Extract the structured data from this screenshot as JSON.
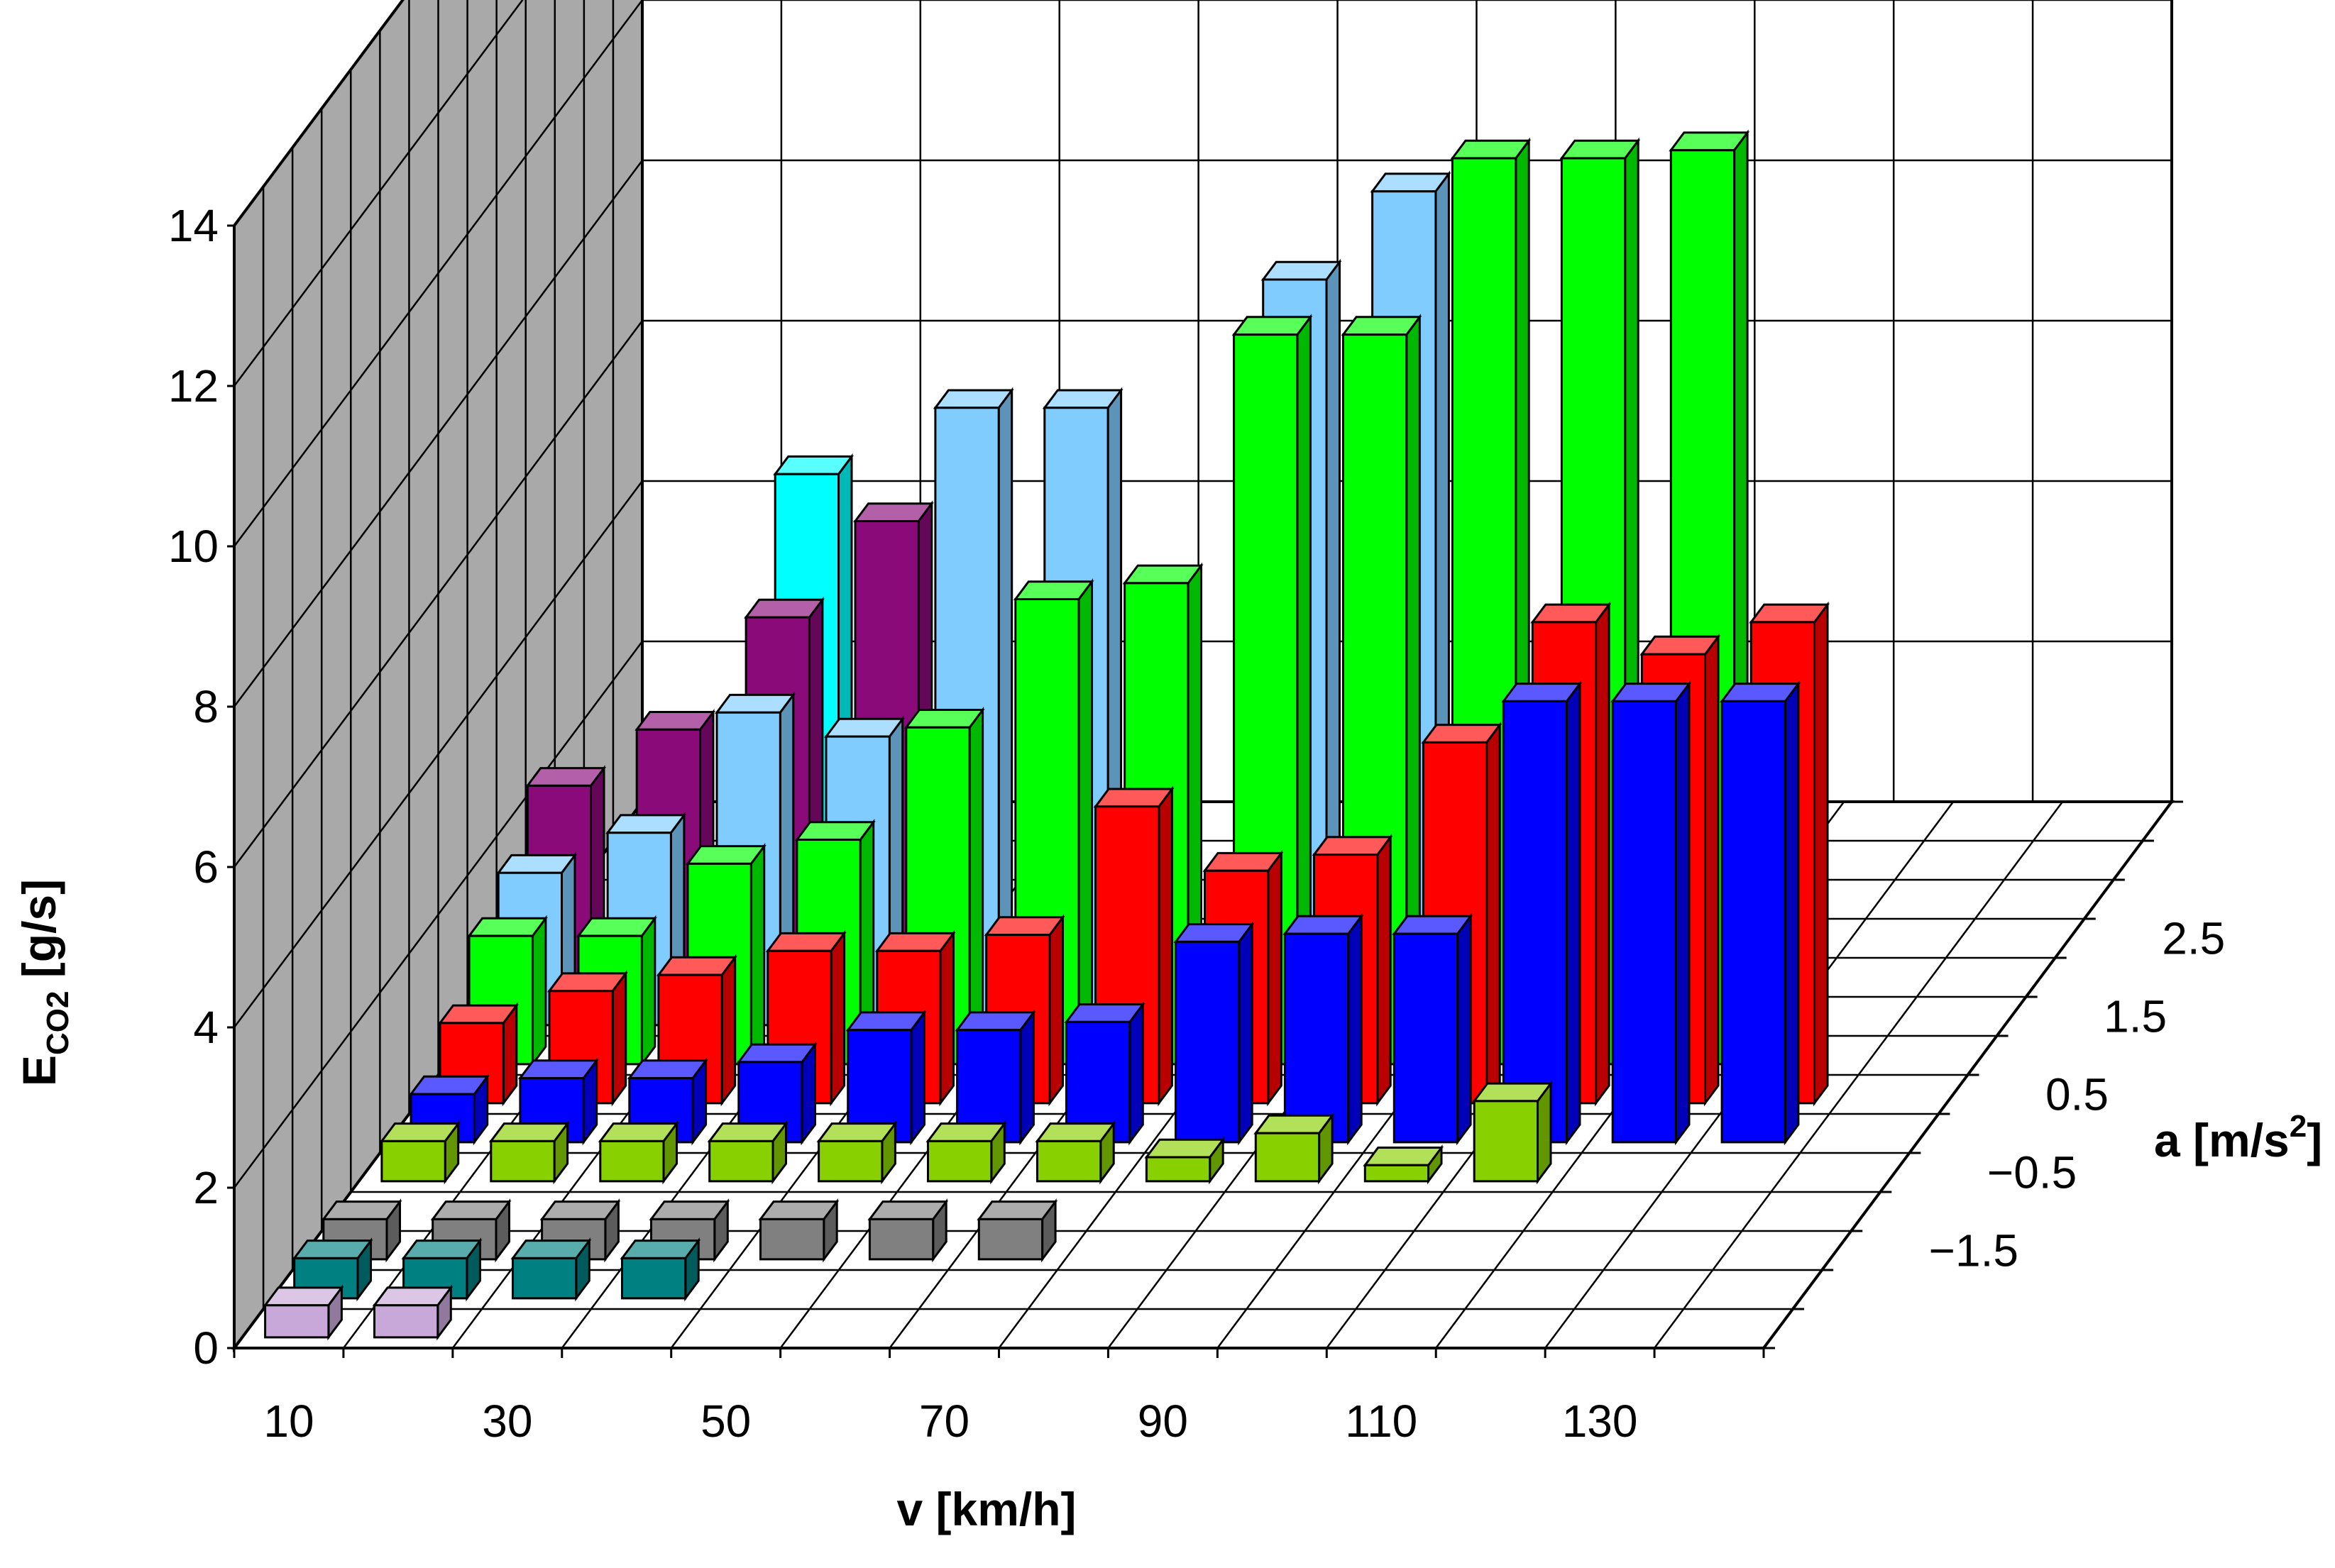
{
  "chart_data": {
    "type": "bar3d",
    "title": "",
    "xlabel": "v [km/h]",
    "ylabel_main": "E",
    "ylabel_sub": "CO2",
    "ylabel_unit": " [g/s]",
    "zlabel": "a [m/s²]",
    "zlabel_main": "a [m/s",
    "zlabel_sup": "2",
    "zlabel_end": "]",
    "ylim": [
      0,
      14
    ],
    "y_ticks": [
      "0",
      "2",
      "4",
      "6",
      "8",
      "10",
      "12",
      "14"
    ],
    "x_ticks": [
      "10",
      "30",
      "50",
      "70",
      "90",
      "110",
      "130"
    ],
    "z_ticks": [
      "−1.5",
      "−0.5",
      "0.5",
      "1.5",
      "2.5"
    ],
    "speeds": [
      10,
      20,
      30,
      40,
      50,
      60,
      70,
      80,
      90,
      100,
      110,
      120,
      130,
      140
    ],
    "series": [
      {
        "accel": -2.5,
        "color": "#c8a8d8",
        "values": [
          0.4,
          0.4,
          null,
          null,
          null,
          null,
          null,
          null,
          null,
          null,
          null,
          null,
          null,
          null
        ]
      },
      {
        "accel": -2.0,
        "color": "#008080",
        "values": [
          0.5,
          0.5,
          0.5,
          0.5,
          null,
          null,
          null,
          null,
          null,
          null,
          null,
          null,
          null,
          null
        ]
      },
      {
        "accel": -1.5,
        "color": "#808080",
        "values": [
          0.5,
          0.5,
          0.5,
          0.5,
          0.5,
          0.5,
          0.5,
          null,
          null,
          null,
          null,
          null,
          null,
          null
        ]
      },
      {
        "accel": -0.5,
        "color": "#88d000",
        "values": [
          0.5,
          0.5,
          0.5,
          0.5,
          0.5,
          0.5,
          0.5,
          0.3,
          0.6,
          0.2,
          1.0,
          null,
          null,
          null
        ]
      },
      {
        "accel": 0.0,
        "color": "#0000ff",
        "values": [
          0.6,
          0.8,
          0.8,
          1.0,
          1.4,
          1.4,
          1.5,
          2.5,
          2.6,
          2.6,
          5.5,
          5.5,
          5.5,
          null
        ]
      },
      {
        "accel": 0.5,
        "color": "#ff0000",
        "values": [
          1.0,
          1.4,
          1.6,
          1.9,
          1.9,
          2.1,
          3.7,
          2.9,
          3.1,
          4.5,
          6.0,
          5.6,
          6.0,
          null
        ]
      },
      {
        "accel": 1.0,
        "color": "#00ff00",
        "values": [
          1.6,
          1.6,
          2.5,
          2.8,
          4.2,
          5.8,
          6.0,
          9.1,
          9.1,
          11.3,
          11.3,
          11.4,
          null,
          null
        ]
      },
      {
        "accel": 1.5,
        "color": "#80ccff",
        "values": [
          1.9,
          2.4,
          3.9,
          3.6,
          7.7,
          7.7,
          null,
          9.3,
          10.4,
          null,
          null,
          null,
          null,
          null
        ]
      },
      {
        "accel": 2.0,
        "color": "#8b0a7a",
        "values": [
          2.5,
          3.2,
          4.6,
          5.8,
          null,
          null,
          null,
          null,
          null,
          null,
          null,
          null,
          null,
          null
        ]
      },
      {
        "accel": 2.5,
        "color": "#00ffff",
        "values": [
          null,
          null,
          5.9,
          null,
          null,
          null,
          null,
          null,
          null,
          null,
          null,
          null,
          null,
          null
        ]
      }
    ]
  }
}
